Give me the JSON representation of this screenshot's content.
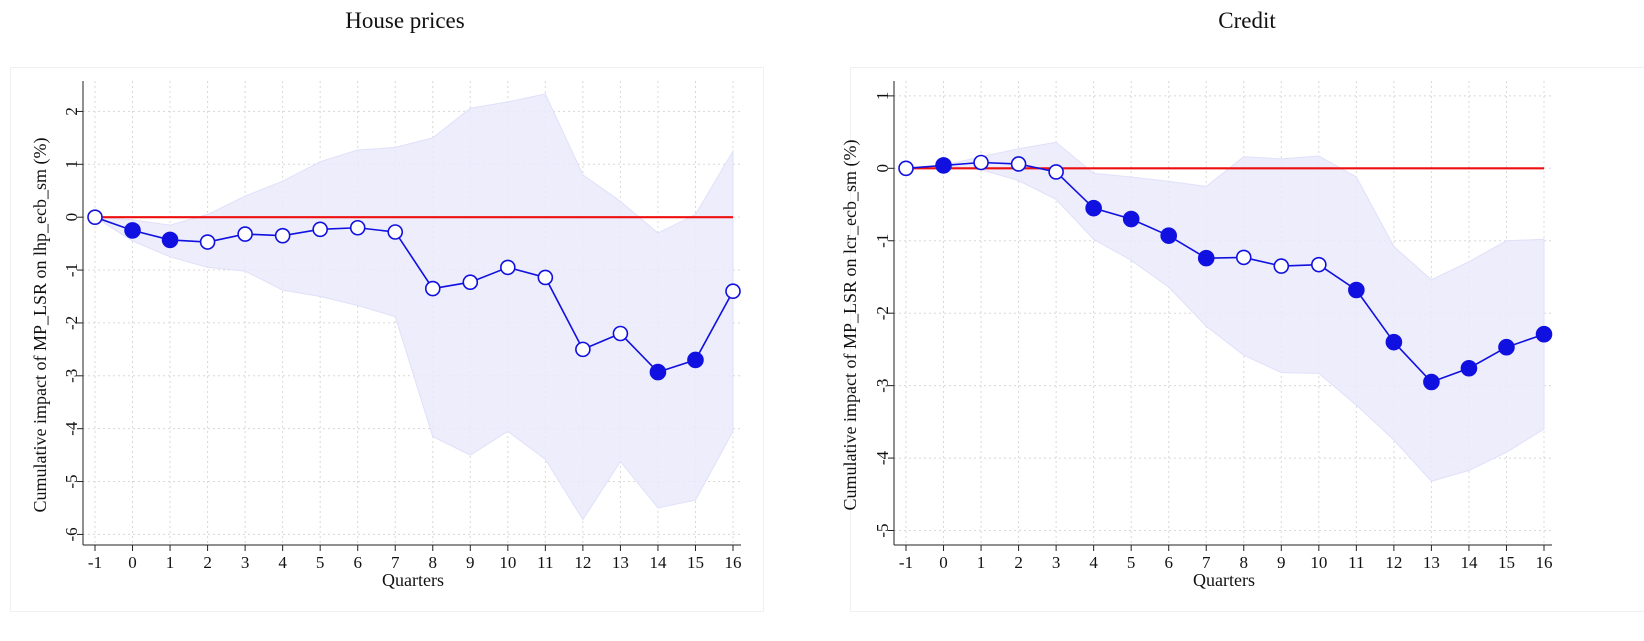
{
  "chart_data": [
    {
      "type": "line",
      "title": "House prices",
      "xlabel": "Quarters",
      "ylabel": "Cumulative impact of MP_LSR on lhp_ecb_sm (%)",
      "x": [
        -1,
        0,
        1,
        2,
        3,
        4,
        5,
        6,
        7,
        8,
        9,
        10,
        11,
        12,
        13,
        14,
        15,
        16
      ],
      "xticks": [
        "-1",
        "0",
        "1",
        "2",
        "3",
        "4",
        "5",
        "6",
        "7",
        "8",
        "9",
        "10",
        "11",
        "12",
        "13",
        "14",
        "15",
        "16"
      ],
      "yticks": [
        2,
        1,
        0,
        -1,
        -2,
        -3,
        -4,
        -5,
        -6
      ],
      "ylim": [
        -6.2,
        2.5
      ],
      "xlim": [
        -1,
        16
      ],
      "grid": true,
      "series": [
        {
          "kind": "estimate",
          "color": "#1010e0",
          "values": [
            0,
            -0.25,
            -0.43,
            -0.47,
            -0.32,
            -0.35,
            -0.23,
            -0.2,
            -0.28,
            -1.35,
            -1.23,
            -0.95,
            -1.14,
            -2.5,
            -2.2,
            -2.93,
            -2.7,
            -1.4
          ],
          "significant": [
            false,
            true,
            true,
            false,
            false,
            false,
            false,
            false,
            false,
            false,
            false,
            false,
            false,
            false,
            false,
            true,
            true,
            false
          ]
        }
      ],
      "band": {
        "color": "#eaeafc",
        "upper": [
          0,
          -0.05,
          -0.15,
          0.05,
          0.4,
          0.68,
          1.05,
          1.27,
          1.32,
          1.5,
          2.06,
          2.18,
          2.33,
          0.8,
          0.3,
          -0.3,
          0.05,
          1.25
        ],
        "lower": [
          0,
          -0.45,
          -0.75,
          -0.95,
          -1.02,
          -1.38,
          -1.5,
          -1.67,
          -1.88,
          -4.15,
          -4.5,
          -4.05,
          -4.58,
          -5.72,
          -4.62,
          -5.5,
          -5.35,
          -4.05
        ]
      },
      "zero_line_color": "#ee1010"
    },
    {
      "type": "line",
      "title": "Credit",
      "xlabel": "Quarters",
      "ylabel": "Cumulative impact of MP_LSR on lcr_ecb_sm (%)",
      "x": [
        -1,
        0,
        1,
        2,
        3,
        4,
        5,
        6,
        7,
        8,
        9,
        10,
        11,
        12,
        13,
        14,
        15,
        16
      ],
      "xticks": [
        "-1",
        "0",
        "1",
        "2",
        "3",
        "4",
        "5",
        "6",
        "7",
        "8",
        "9",
        "10",
        "11",
        "12",
        "13",
        "14",
        "15",
        "16"
      ],
      "yticks": [
        1,
        0,
        -1,
        -2,
        -3,
        -4,
        -5
      ],
      "ylim": [
        -5.2,
        1.15
      ],
      "xlim": [
        -1,
        16
      ],
      "grid": true,
      "series": [
        {
          "kind": "estimate",
          "color": "#1010e0",
          "values": [
            0,
            0.04,
            0.08,
            0.06,
            -0.05,
            -0.55,
            -0.7,
            -0.93,
            -1.24,
            -1.23,
            -1.35,
            -1.33,
            -1.68,
            -2.4,
            -2.95,
            -2.76,
            -2.47,
            -2.29
          ],
          "significant": [
            false,
            true,
            false,
            false,
            false,
            true,
            true,
            true,
            true,
            false,
            false,
            false,
            true,
            true,
            true,
            true,
            true,
            true
          ]
        }
      ],
      "band": {
        "color": "#eaeafc",
        "upper": [
          0,
          0.04,
          0.16,
          0.27,
          0.36,
          -0.07,
          -0.12,
          -0.18,
          -0.25,
          0.16,
          0.13,
          0.17,
          -0.12,
          -1.08,
          -1.54,
          -1.29,
          -1.0,
          -0.98
        ],
        "lower": [
          0,
          0.04,
          -0.02,
          -0.17,
          -0.43,
          -0.98,
          -1.27,
          -1.64,
          -2.18,
          -2.58,
          -2.82,
          -2.83,
          -3.27,
          -3.75,
          -4.32,
          -4.17,
          -3.92,
          -3.6
        ]
      },
      "zero_line_color": "#ee1010"
    }
  ]
}
